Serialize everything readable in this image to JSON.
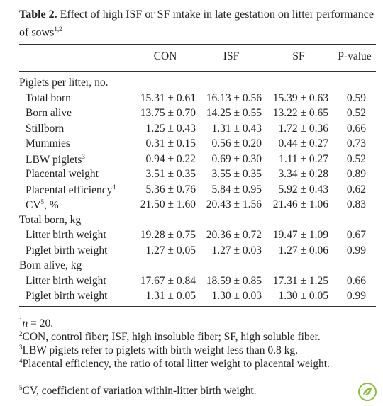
{
  "title": {
    "label": "Table 2.",
    "text": "Effect of high ISF or SF intake in late gestation on litter performance of sows",
    "sup": "1,2"
  },
  "table": {
    "header": [
      "CON",
      "ISF",
      "SF",
      "P-value"
    ],
    "rows": [
      {
        "section": "Piglets per litter, no."
      },
      {
        "label": "Total born",
        "values": [
          "15.31 ± 0.61",
          "16.13 ± 0.56",
          "15.39 ± 0.63",
          "0.59"
        ]
      },
      {
        "label": "Born alive",
        "values": [
          "13.75 ± 0.70",
          "14.25 ± 0.55",
          "13.22 ± 0.65",
          "0.52"
        ]
      },
      {
        "label": "Stillborn",
        "values": [
          "1.25 ± 0.43",
          "1.31 ± 0.43",
          "1.72 ± 0.36",
          "0.66"
        ]
      },
      {
        "label": "Mummies",
        "values": [
          "0.31 ± 0.15",
          "0.56 ± 0.20",
          "0.44 ± 0.27",
          "0.73"
        ]
      },
      {
        "label": "LBW piglets",
        "sup": "3",
        "values": [
          "0.94 ± 0.22",
          "0.69 ± 0.30",
          "1.11 ± 0.27",
          "0.52"
        ]
      },
      {
        "label": "Placental weight",
        "values": [
          "3.51 ± 0.35",
          "3.55 ± 0.35",
          "3.34 ± 0.28",
          "0.89"
        ]
      },
      {
        "label": "Placental efficiency",
        "sup": "4",
        "values": [
          "5.36 ± 0.76",
          "5.84 ± 0.95",
          "5.92 ± 0.43",
          "0.62"
        ]
      },
      {
        "label": "CV",
        "sup": "5",
        "suffix": ", %",
        "values": [
          "21.50 ± 1.60",
          "20.43 ± 1.56",
          "21.46 ± 1.06",
          "0.83"
        ]
      },
      {
        "section": "Total born, kg"
      },
      {
        "label": "Litter birth weight",
        "values": [
          "19.28 ± 0.75",
          "20.36 ± 0.72",
          "19.47 ± 1.09",
          "0.67"
        ]
      },
      {
        "label": "Piglet birth weight",
        "values": [
          "1.27 ± 0.05",
          "1.27 ± 0.03",
          "1.27 ± 0.06",
          "0.99"
        ]
      },
      {
        "section": "Born alive, kg"
      },
      {
        "label": "Litter birth weight",
        "values": [
          "17.67 ± 0.84",
          "18.59 ± 0.85",
          "17.31 ± 1.25",
          "0.66"
        ]
      },
      {
        "label": "Piglet birth weight",
        "values": [
          "1.31 ± 0.05",
          "1.30 ± 0.03",
          "1.30 ± 0.05",
          "0.99"
        ]
      }
    ]
  },
  "footnotes": [
    {
      "mark": "1",
      "italic": "n",
      "text": " = 20."
    },
    {
      "mark": "2",
      "text": "CON, control fiber; ISF, high insoluble fiber; SF, high soluble fiber."
    },
    {
      "mark": "3",
      "text": "LBW piglets refer to piglets with birth weight less than 0.8 kg."
    },
    {
      "mark": "4",
      "text": "Placental efficiency, the ratio of total litter weight to placental weight."
    },
    {
      "mark": "5",
      "text": "CV, coefficient of variation within-litter birth weight."
    }
  ]
}
